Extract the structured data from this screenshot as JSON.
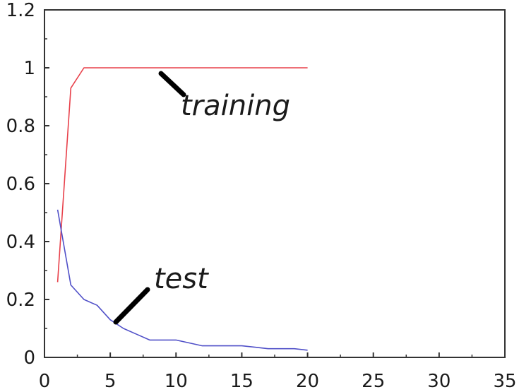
{
  "chart_data": {
    "type": "line",
    "title": "",
    "xlabel": "",
    "ylabel": "",
    "xlim": [
      0,
      35
    ],
    "ylim": [
      0,
      1.2
    ],
    "x_ticks": [
      "0",
      "5",
      "10",
      "15",
      "20",
      "25",
      "30",
      "35"
    ],
    "y_ticks": [
      "0",
      "0.2",
      "0.4",
      "0.6",
      "0.8",
      "1",
      "1.2"
    ],
    "grid": false,
    "series": [
      {
        "name": "training",
        "color": "#e8404a",
        "x": [
          1,
          2,
          3,
          4,
          5,
          6,
          7,
          8,
          9,
          10,
          11,
          12,
          13,
          14,
          15,
          16,
          17,
          18,
          19,
          20
        ],
        "y": [
          0.26,
          0.93,
          1.0,
          1.0,
          1.0,
          1.0,
          1.0,
          1.0,
          1.0,
          1.0,
          1.0,
          1.0,
          1.0,
          1.0,
          1.0,
          1.0,
          1.0,
          1.0,
          1.0,
          1.0
        ]
      },
      {
        "name": "test",
        "color": "#5050c8",
        "x": [
          1,
          2,
          3,
          4,
          5,
          6,
          7,
          8,
          9,
          10,
          11,
          12,
          13,
          14,
          15,
          16,
          17,
          18,
          19,
          20
        ],
        "y": [
          0.51,
          0.25,
          0.2,
          0.18,
          0.13,
          0.1,
          0.08,
          0.06,
          0.06,
          0.06,
          0.05,
          0.04,
          0.04,
          0.04,
          0.04,
          0.035,
          0.03,
          0.03,
          0.03,
          0.025
        ]
      }
    ],
    "annotations": [
      {
        "text": "training",
        "series": "training"
      },
      {
        "text": "test",
        "series": "test"
      }
    ]
  }
}
